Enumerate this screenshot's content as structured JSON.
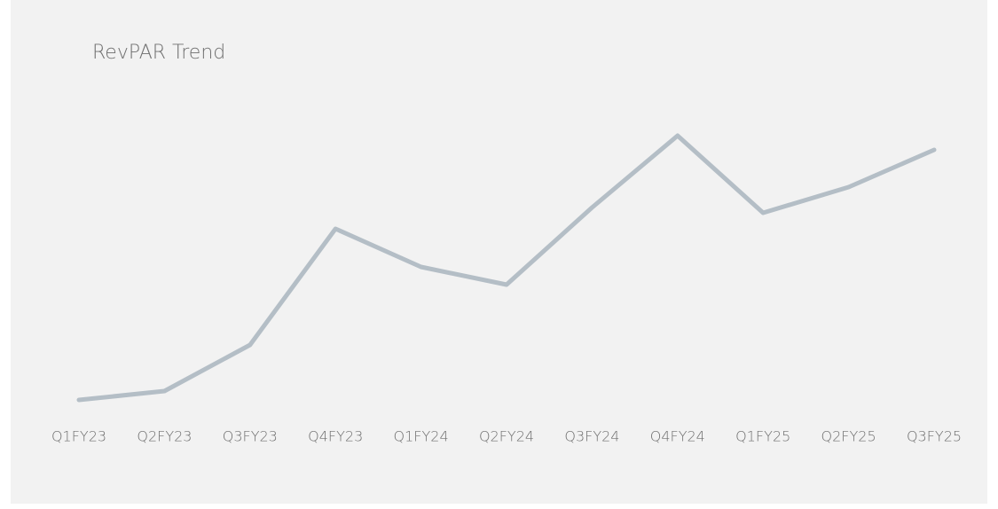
{
  "chart_data": {
    "type": "line",
    "title": "RevPAR Trend",
    "categories": [
      "Q1FY23",
      "Q2FY23",
      "Q3FY23",
      "Q4FY23",
      "Q1FY24",
      "Q2FY24",
      "Q3FY24",
      "Q4FY24",
      "Q1FY25",
      "Q2FY25",
      "Q3FY25"
    ],
    "series": [
      {
        "name": "RevPAR",
        "color": "#b4bec6",
        "values": [
          49,
          59,
          111,
          242,
          199,
          179,
          266,
          347,
          260,
          289,
          331
        ]
      }
    ]
  }
}
